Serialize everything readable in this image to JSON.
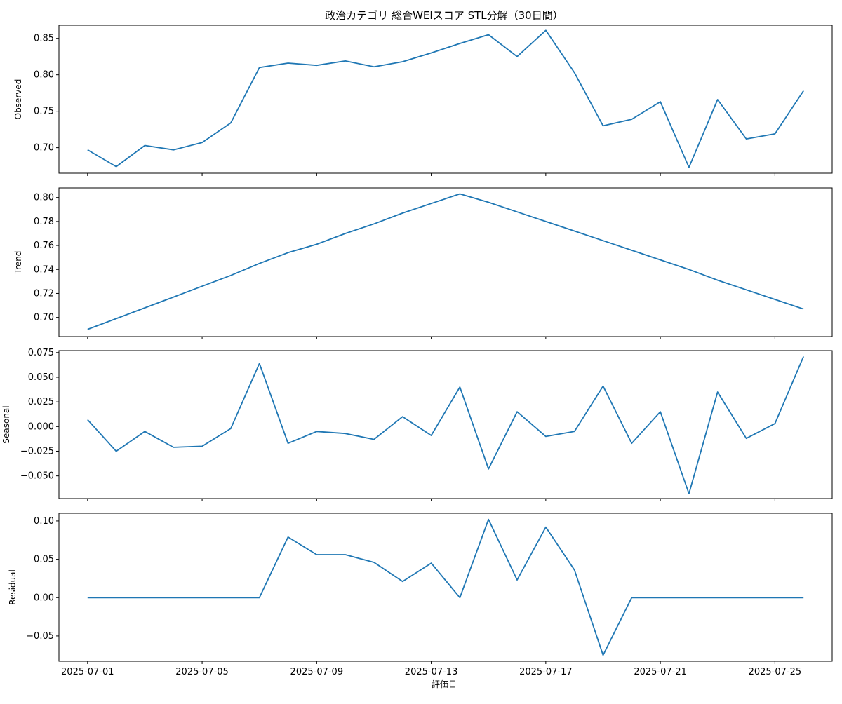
{
  "chart_data": {
    "type": "line",
    "title": "政治カテゴリ 総合WEIスコア STL分解（30日間）",
    "xlabel": "評価日",
    "x": [
      "2025-07-01",
      "2025-07-02",
      "2025-07-03",
      "2025-07-04",
      "2025-07-05",
      "2025-07-06",
      "2025-07-07",
      "2025-07-08",
      "2025-07-09",
      "2025-07-10",
      "2025-07-11",
      "2025-07-12",
      "2025-07-13",
      "2025-07-14",
      "2025-07-15",
      "2025-07-16",
      "2025-07-17",
      "2025-07-18",
      "2025-07-19",
      "2025-07-20",
      "2025-07-21",
      "2025-07-22",
      "2025-07-23",
      "2025-07-24",
      "2025-07-25",
      "2025-07-26"
    ],
    "xticks": [
      "2025-07-01",
      "2025-07-05",
      "2025-07-09",
      "2025-07-13",
      "2025-07-17",
      "2025-07-21",
      "2025-07-25"
    ],
    "xlim": [
      "2025-06-30",
      "2025-07-27"
    ],
    "line_color": "#1f77b4",
    "panels": [
      {
        "ylabel": "Observed",
        "ylim": [
          0.665,
          0.868
        ],
        "yticks": [
          "0.70",
          "0.75",
          "0.80",
          "0.85"
        ],
        "values": [
          0.697,
          0.674,
          0.703,
          0.697,
          0.707,
          0.734,
          0.81,
          0.816,
          0.813,
          0.819,
          0.811,
          0.818,
          0.83,
          0.843,
          0.855,
          0.825,
          0.861,
          0.803,
          0.73,
          0.739,
          0.763,
          0.673,
          0.766,
          0.712,
          0.719,
          0.778
        ]
      },
      {
        "ylabel": "Trend",
        "ylim": [
          0.684,
          0.808
        ],
        "yticks": [
          "0.70",
          "0.72",
          "0.74",
          "0.76",
          "0.78",
          "0.80"
        ],
        "values": [
          0.69,
          0.699,
          0.708,
          0.717,
          0.726,
          0.735,
          0.745,
          0.754,
          0.761,
          0.77,
          0.778,
          0.787,
          0.795,
          0.803,
          0.796,
          0.788,
          0.78,
          0.772,
          0.764,
          0.756,
          0.748,
          0.74,
          0.731,
          0.723,
          0.715,
          0.707
        ]
      },
      {
        "ylabel": "Seasonal",
        "ylim": [
          -0.073,
          0.077
        ],
        "yticks": [
          "0.075",
          "0.050",
          "0.025",
          "0.000",
          "−0.025",
          "−0.050"
        ],
        "values": [
          0.007,
          -0.025,
          -0.005,
          -0.021,
          -0.02,
          -0.002,
          0.064,
          -0.017,
          -0.005,
          -0.007,
          -0.013,
          0.01,
          -0.009,
          0.04,
          -0.043,
          0.015,
          -0.01,
          -0.005,
          0.041,
          -0.017,
          0.015,
          -0.068,
          0.035,
          -0.012,
          0.003,
          0.071
        ]
      },
      {
        "ylabel": "Residual",
        "ylim": [
          -0.083,
          0.11
        ],
        "yticks": [
          "0.10",
          "0.05",
          "0.00",
          "−0.05"
        ],
        "values": [
          0.0,
          0.0,
          0.0,
          0.0,
          0.0,
          0.0,
          0.0,
          0.079,
          0.056,
          0.056,
          0.046,
          0.021,
          0.045,
          0.0,
          0.102,
          0.023,
          0.092,
          0.036,
          -0.075,
          0.0,
          0.0,
          0.0,
          0.0,
          0.0,
          0.0,
          0.0
        ]
      }
    ]
  }
}
